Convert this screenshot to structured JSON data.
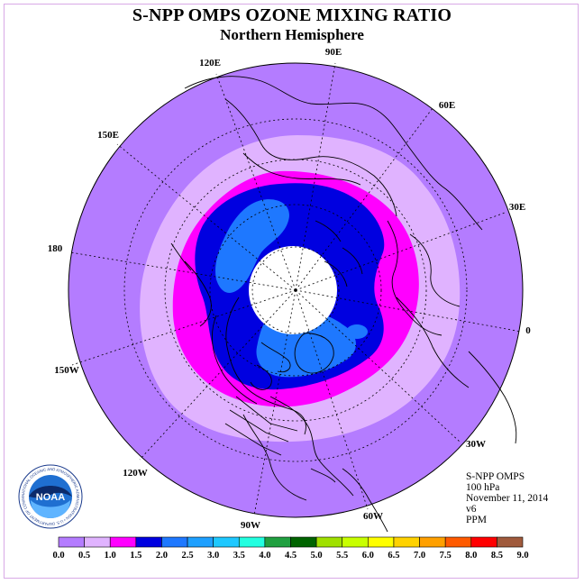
{
  "title": "S-NPP OMPS OZONE MIXING RATIO",
  "subtitle": "Northern Hemisphere",
  "info": {
    "instrument": "S-NPP OMPS",
    "level": "100 hPa",
    "date": "November 11, 2014",
    "version": "v6",
    "units": "PPM"
  },
  "logo": {
    "text": "NOAA",
    "ring_text": "NATIONAL OCEANIC AND ATMOSPHERIC ADMINISTRATION • U.S. DEPARTMENT OF COMMERCE"
  },
  "longitude_labels": {
    "e90": "90E",
    "e60": "60E",
    "e30": "30E",
    "zero": "0",
    "w30": "30W",
    "w60": "60W",
    "w90": "90W",
    "w120": "120W",
    "w150": "150W",
    "d180": "180",
    "e150": "150E",
    "e120": "120E"
  },
  "colorbar": {
    "ticks": [
      "0.0",
      "0.5",
      "1.0",
      "1.5",
      "2.0",
      "2.5",
      "3.0",
      "3.5",
      "4.0",
      "4.5",
      "5.0",
      "5.5",
      "6.0",
      "6.5",
      "7.0",
      "7.5",
      "8.0",
      "8.5",
      "9.0"
    ],
    "colors": [
      "#b47cff",
      "#e0b3ff",
      "#ff00ff",
      "#0000e0",
      "#1e78ff",
      "#1ea0ff",
      "#1ec8ff",
      "#22ffe0",
      "#20a040",
      "#006400",
      "#a0e000",
      "#c8ff00",
      "#ffff00",
      "#ffd200",
      "#ffa000",
      "#ff5a00",
      "#ff0000",
      "#a05a3c"
    ]
  },
  "colors": {
    "ocean_bg": "#b47cff",
    "band_0_5": "#e0b3ff",
    "band_1_0": "#ff00ff",
    "band_1_5": "#0000e0",
    "band_2_0": "#1e78ff",
    "polar_hole": "#ffffff"
  }
}
